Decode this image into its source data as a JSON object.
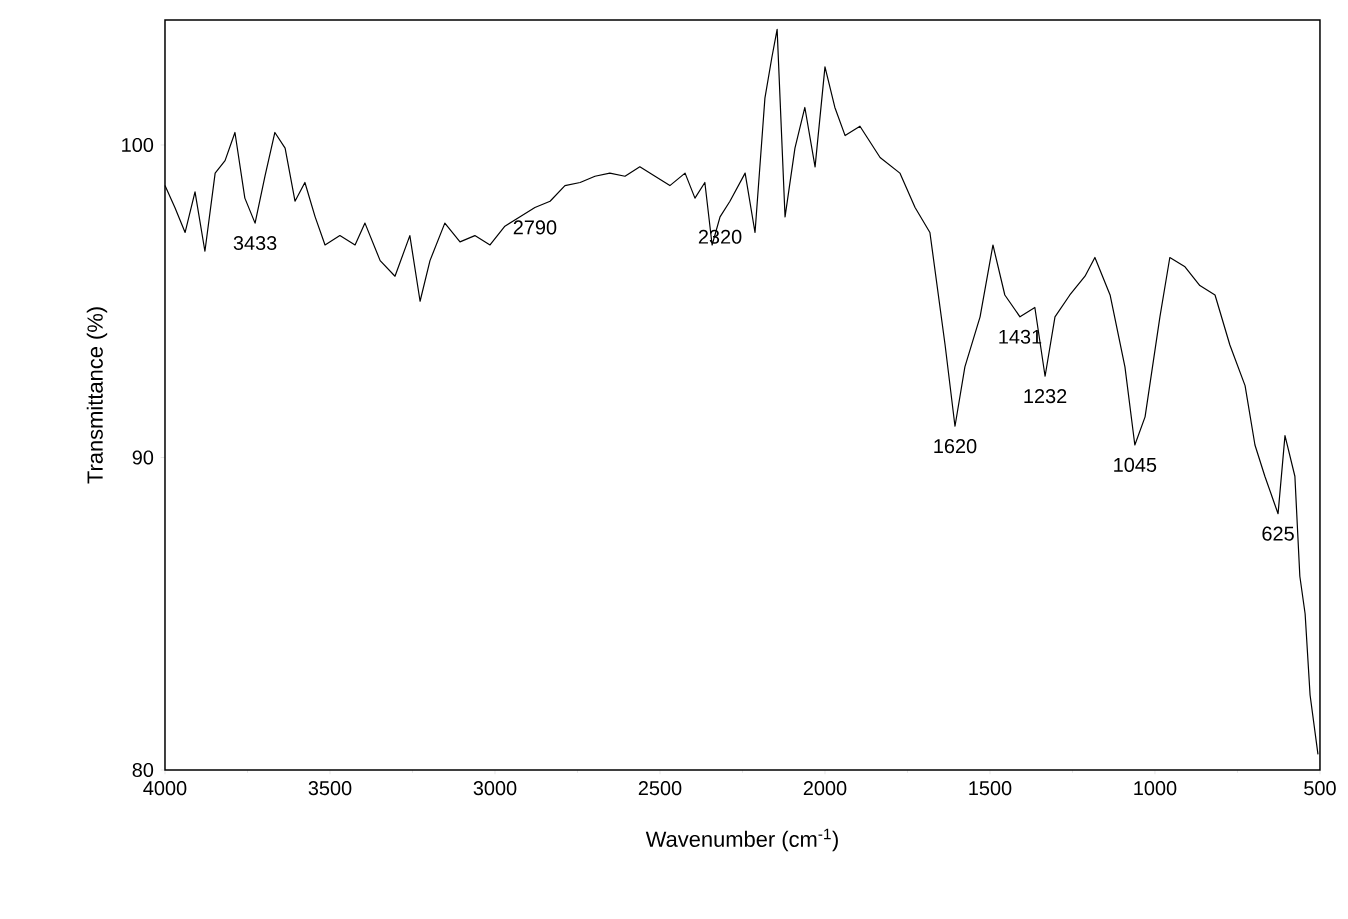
{
  "chart_data": {
    "type": "line",
    "xlabel": "Wavenumber (cm$^{-1}$)",
    "ylabel": "Transmittance (%)",
    "x": [
      4000,
      3970,
      3939,
      3909,
      3879,
      3848,
      3818,
      3788,
      3758,
      3727,
      3697,
      3667,
      3636,
      3606,
      3576,
      3545,
      3515,
      3470,
      3424,
      3394,
      3348,
      3303,
      3258,
      3227,
      3197,
      3152,
      3106,
      3061,
      3015,
      2970,
      2924,
      2879,
      2833,
      2788,
      2742,
      2697,
      2652,
      2606,
      2561,
      2515,
      2470,
      2424,
      2394,
      2364,
      2342,
      2318,
      2288,
      2242,
      2212,
      2182,
      2161,
      2145,
      2121,
      2091,
      2061,
      2030,
      2000,
      1970,
      1939,
      1894,
      1833,
      1773,
      1727,
      1682,
      1636,
      1606,
      1576,
      1530,
      1491,
      1455,
      1409,
      1364,
      1333,
      1303,
      1258,
      1212,
      1182,
      1136,
      1091,
      1061,
      1030,
      985,
      955,
      909,
      864,
      818,
      773,
      727,
      697,
      667,
      627,
      606,
      576,
      561,
      545,
      530,
      506
    ],
    "series": [
      {
        "color": "#000000",
        "values": [
          98.7,
          98.0,
          97.2,
          98.5,
          96.6,
          99.1,
          99.5,
          100.4,
          98.3,
          97.5,
          99.0,
          100.4,
          99.9,
          98.2,
          98.8,
          97.7,
          96.8,
          97.1,
          96.8,
          97.5,
          96.3,
          95.8,
          97.1,
          95.0,
          96.3,
          97.5,
          96.9,
          97.1,
          96.8,
          97.4,
          97.7,
          98.0,
          98.2,
          98.7,
          98.8,
          99.0,
          99.1,
          99.0,
          99.3,
          99.0,
          98.7,
          99.1,
          98.3,
          98.8,
          96.8,
          97.7,
          98.2,
          99.1,
          97.2,
          101.5,
          102.8,
          103.7,
          97.7,
          99.9,
          101.2,
          99.3,
          102.5,
          101.2,
          100.3,
          100.6,
          99.6,
          99.1,
          98.0,
          97.2,
          93.6,
          91.0,
          92.9,
          94.5,
          96.8,
          95.2,
          94.5,
          94.8,
          92.6,
          94.5,
          95.2,
          95.8,
          96.4,
          95.2,
          92.9,
          90.4,
          91.3,
          94.5,
          96.4,
          96.1,
          95.5,
          95.2,
          93.6,
          92.3,
          90.4,
          89.4,
          88.2,
          90.7,
          89.4,
          86.2,
          85.0,
          82.4,
          80.5
        ]
      }
    ],
    "xlim": [
      4000,
      500
    ],
    "xticks": [
      4000,
      3500,
      3000,
      2500,
      2000,
      1500,
      1000,
      500
    ],
    "ylim": [
      80,
      104
    ],
    "yticks": [
      80,
      90,
      100
    ],
    "annotations": [
      {
        "text": "3433",
        "x": 3727,
        "y": 97.5
      },
      {
        "text": "2790",
        "x": 2879,
        "y": 98.0
      },
      {
        "text": "2320",
        "x": 2318,
        "y": 97.7
      },
      {
        "text": "1620",
        "x": 1606,
        "y": 91.0
      },
      {
        "text": "1431",
        "x": 1409,
        "y": 94.5
      },
      {
        "text": "1232",
        "x": 1333,
        "y": 92.6
      },
      {
        "text": "1045",
        "x": 1061,
        "y": 90.4
      },
      {
        "text": "625",
        "x": 627,
        "y": 88.2
      }
    ],
    "grid": false,
    "marker": "none",
    "line_style": "solid"
  }
}
